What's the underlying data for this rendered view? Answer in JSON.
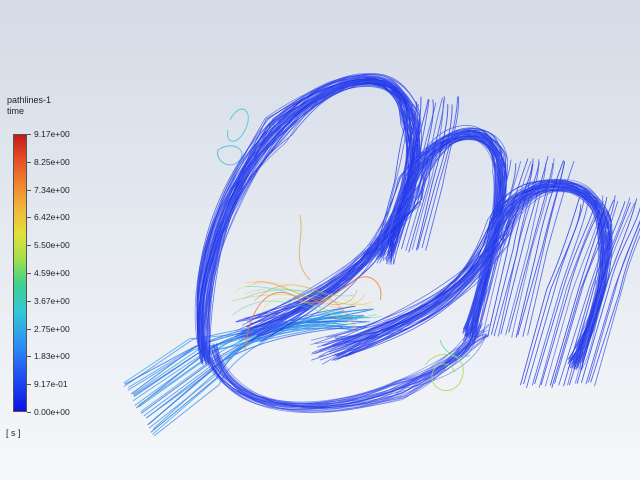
{
  "legend": {
    "name": "pathlines-1",
    "variable": "time",
    "unit": "[ s ]",
    "ticks": [
      "9.17e+00",
      "8.25e+00",
      "7.34e+00",
      "6.42e+00",
      "5.50e+00",
      "4.59e+00",
      "3.67e+00",
      "2.75e+00",
      "1.83e+00",
      "9.17e-01",
      "0.00e+00"
    ],
    "colors": [
      "#c21a1a",
      "#e04422",
      "#ee7a2e",
      "#f0b43a",
      "#e3e03a",
      "#9fe04d",
      "#40d08f",
      "#33c7d8",
      "#2e8ff2",
      "#1e4df0",
      "#0b13e6"
    ]
  },
  "scene": {
    "background_top": "#d4dbe6",
    "background_bottom": "#f6f7f9",
    "pathline_primary": "#1a2de8",
    "pathline_inlet": "#2fa6e8"
  }
}
